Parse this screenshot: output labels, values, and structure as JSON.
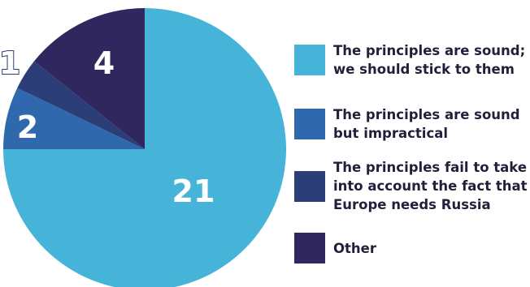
{
  "chart_data": {
    "type": "pie",
    "slices": [
      {
        "label": "The principles are sound; we should stick to them",
        "value": 21,
        "display": "21",
        "color": "#46b3d8"
      },
      {
        "label": "The principles are sound but impractical",
        "value": 2,
        "display": "2",
        "color": "#2f68ac"
      },
      {
        "label": "The principles fail to take into account the fact that Europe needs Russia",
        "value": 1,
        "display": "1",
        "color": "#2c3e78"
      },
      {
        "label": "Other",
        "value": 4,
        "display": "4",
        "color": "#30275e"
      }
    ],
    "legend_position": "right"
  }
}
